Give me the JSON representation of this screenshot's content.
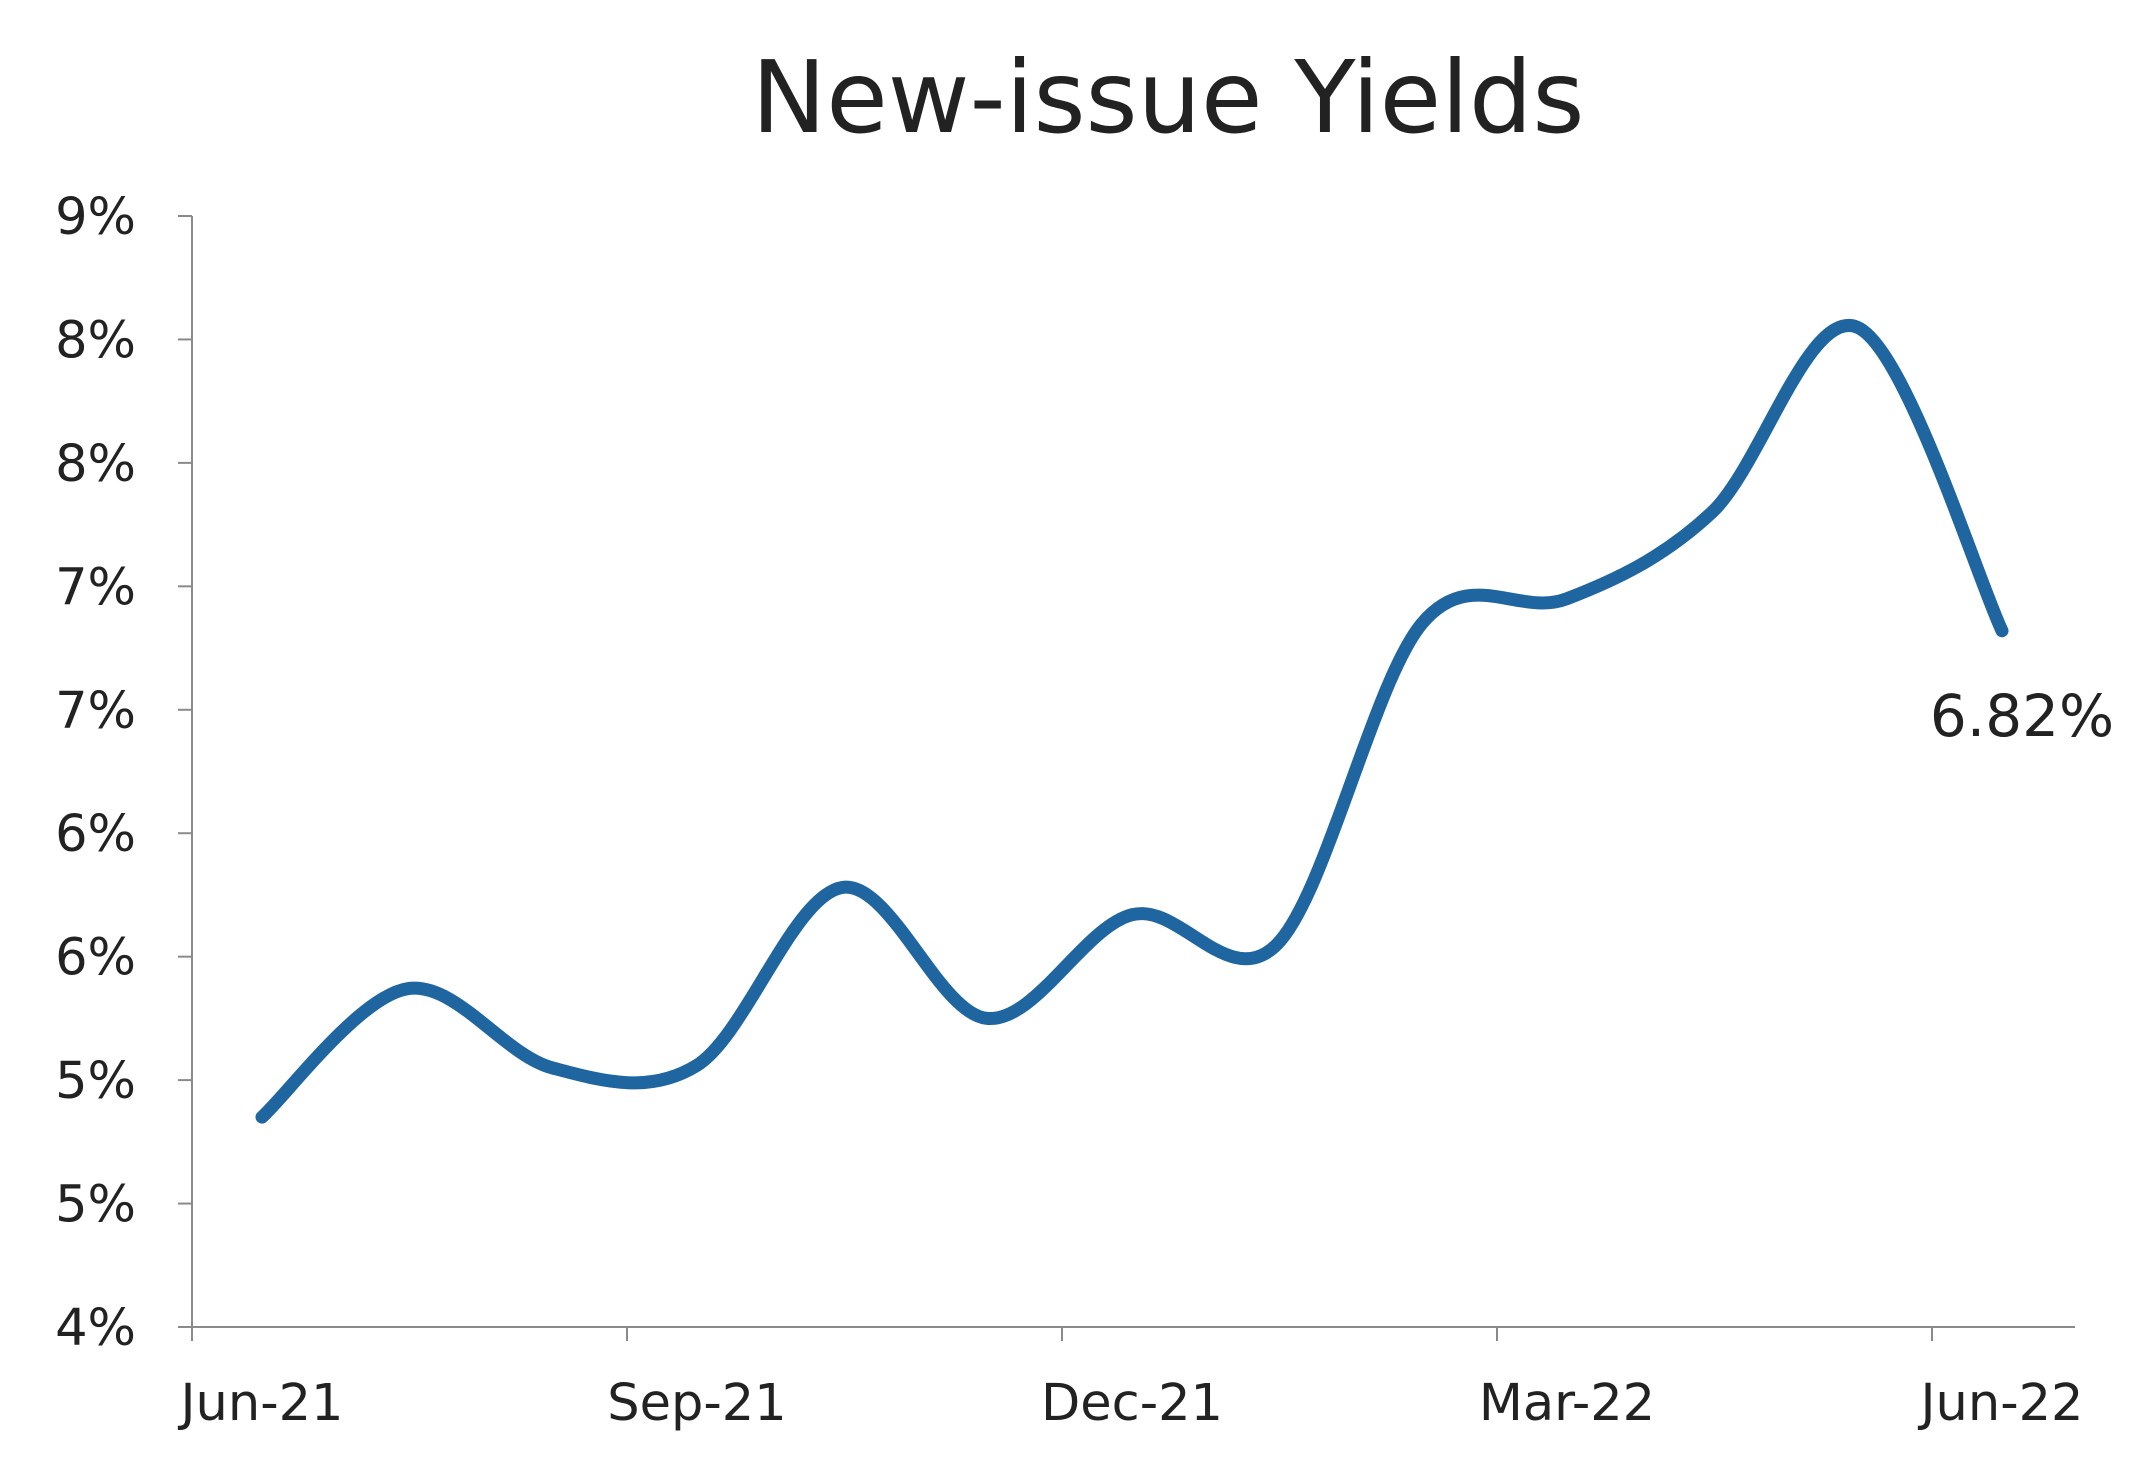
{
  "chart_data": {
    "type": "line",
    "title": "New-issue Yields",
    "xlabel": "",
    "ylabel": "",
    "y_tick_labels": [
      "4%",
      "5%",
      "5%",
      "6%",
      "6%",
      "7%",
      "7%",
      "8%",
      "8%",
      "9%"
    ],
    "y_tick_values": [
      4.0,
      4.5,
      5.0,
      5.5,
      6.0,
      6.5,
      7.0,
      7.5,
      8.0,
      8.5
    ],
    "ylim": [
      4.0,
      8.5
    ],
    "x_tick_labels": [
      "Jun-21",
      "Sep-21",
      "Dec-21",
      "Mar-22",
      "Jun-22"
    ],
    "x_tick_values": [
      "2021-06",
      "2021-09",
      "2021-12",
      "2022-03",
      "2022-06"
    ],
    "xlim": [
      "2021-06",
      "2022-06"
    ],
    "x": [
      "2021-06",
      "2021-07",
      "2021-08",
      "2021-09",
      "2021-10",
      "2021-11",
      "2021-12",
      "2022-01",
      "2022-02",
      "2022-03",
      "2022-04",
      "2022-05",
      "2022-06"
    ],
    "series": [
      {
        "values": [
          4.85,
          5.37,
          5.05,
          5.06,
          5.78,
          5.25,
          5.67,
          5.55,
          6.85,
          6.95,
          7.3,
          8.05,
          6.82
        ],
        "color": "#1f65a0"
      }
    ],
    "annotation": {
      "text": "6.82%",
      "x": "2022-06",
      "y": 6.82
    },
    "grid": false,
    "legend": "none"
  }
}
